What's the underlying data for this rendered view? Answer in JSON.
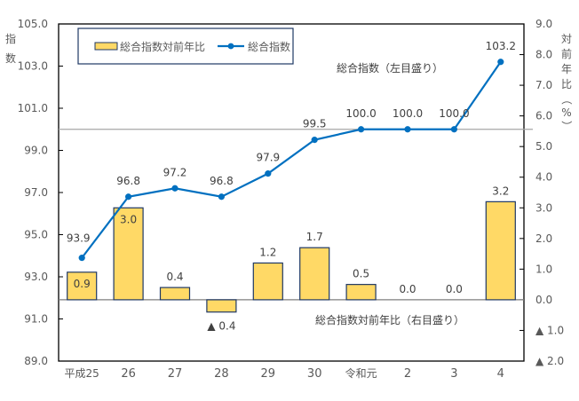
{
  "chart_data": {
    "type": "bar+line",
    "title": "",
    "categories": [
      "平成25",
      "26",
      "27",
      "28",
      "29",
      "30",
      "令和元",
      "2",
      "3",
      "4"
    ],
    "series": [
      {
        "name": "総合指数対前年比",
        "type": "bar",
        "axis": "right",
        "values": [
          0.9,
          3.0,
          0.4,
          -0.4,
          1.2,
          1.7,
          0.5,
          0.0,
          0.0,
          3.2
        ],
        "labels": [
          "0.9",
          "3.0",
          "0.4",
          "▲ 0.4",
          "1.2",
          "1.7",
          "0.5",
          "0.0",
          "0.0",
          "3.2"
        ],
        "color": "#FFD966",
        "border_color": "#1F3864"
      },
      {
        "name": "総合指数",
        "type": "line",
        "axis": "left",
        "values": [
          93.9,
          96.8,
          97.2,
          96.8,
          97.9,
          99.5,
          100.0,
          100.0,
          100.0,
          103.2
        ],
        "labels": [
          "93.9",
          "96.8",
          "97.2",
          "96.8",
          "97.9",
          "99.5",
          "100.0",
          "100.0",
          "100.0",
          "103.2"
        ],
        "color": "#0070C0"
      }
    ],
    "left_axis": {
      "label": "指数",
      "ylim": [
        89.0,
        105.0
      ],
      "ticks": [
        "105.0",
        "103.0",
        "101.0",
        "99.0",
        "97.0",
        "95.0",
        "93.0",
        "91.0",
        "89.0"
      ]
    },
    "right_axis": {
      "label": "対前年比（%）",
      "ylim": [
        -2.0,
        9.0
      ],
      "ticks": [
        "9.0",
        "8.0",
        "7.0",
        "6.0",
        "5.0",
        "4.0",
        "3.0",
        "2.0",
        "1.0",
        "0.0",
        "▲ 1.0",
        "▲ 2.0"
      ]
    },
    "reference_line": {
      "value": 100.0,
      "axis": "left",
      "color": "#A6A6A6"
    },
    "annotations": [
      "総合指数（左目盛り）",
      "総合指数対前年比（右目盛り）"
    ],
    "legend": {
      "position": "top-left-inside",
      "entries": [
        "総合指数対前年比",
        "総合指数"
      ]
    },
    "grid": false
  },
  "axes": {
    "left_title_chars": [
      "指",
      "数"
    ],
    "right_title_chars": [
      "対",
      "前",
      "年",
      "比",
      "（",
      "%",
      "）"
    ]
  },
  "annotations": {
    "left_scale_note": "総合指数（左目盛り）",
    "right_scale_note": "総合指数対前年比（右目盛り）"
  },
  "legend": {
    "bar_label": "総合指数対前年比",
    "line_label": "総合指数"
  }
}
